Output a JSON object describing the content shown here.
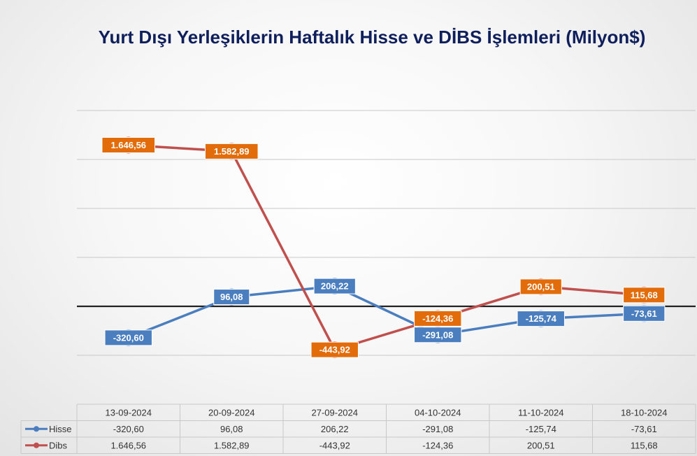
{
  "chart_data": {
    "type": "line",
    "title": "Yurt Dışı Yerleşiklerin Haftalık Hisse ve DİBS İşlemleri (Milyon$)",
    "categories": [
      "13-09-2024",
      "20-09-2024",
      "27-09-2024",
      "04-10-2024",
      "11-10-2024",
      "18-10-2024"
    ],
    "series": [
      {
        "name": "Hisse",
        "values": [
          -320.6,
          96.08,
          206.22,
          -291.08,
          -125.74,
          -73.61
        ],
        "labels": [
          "-320,60",
          "96,08",
          "206,22",
          "-291,08",
          "-125,74",
          "-73,61"
        ],
        "color": "#4a7ebf",
        "label_color": "#4a7ebf"
      },
      {
        "name": "Dibs",
        "values": [
          1646.56,
          1582.89,
          -443.92,
          -124.36,
          200.51,
          115.68
        ],
        "labels": [
          "1.646,56",
          "1.582,89",
          "-443,92",
          "-124,36",
          "200,51",
          "115,68"
        ],
        "color": "#c0504d",
        "label_color": "#e36c0a"
      }
    ],
    "ylim": [
      -1000,
      2000
    ],
    "grid": true,
    "legend": "data-table-below",
    "data_table": true
  }
}
